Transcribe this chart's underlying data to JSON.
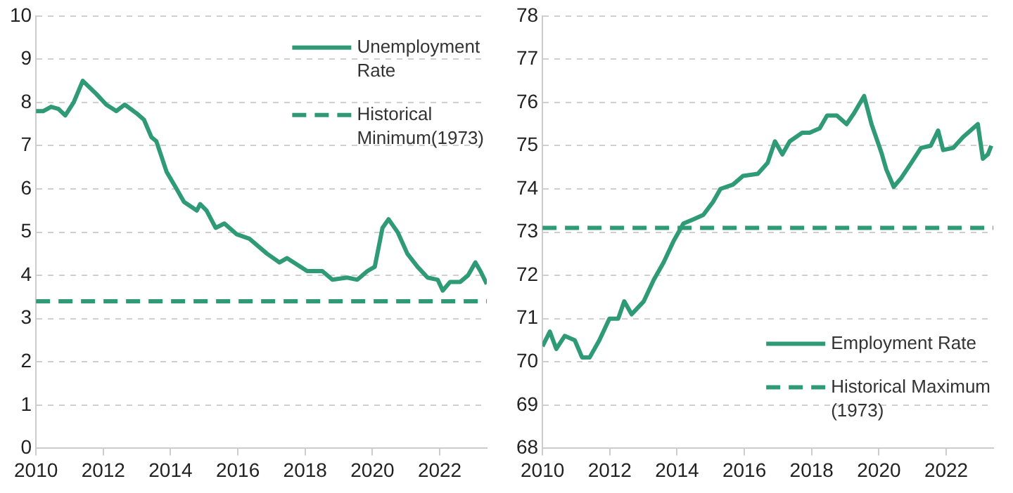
{
  "chart_data": [
    {
      "type": "line",
      "xlim": [
        2010,
        2023.4
      ],
      "xticks": [
        2010,
        2012,
        2014,
        2016,
        2018,
        2020,
        2022
      ],
      "ylim": [
        0,
        10
      ],
      "yticks": [
        0,
        1,
        2,
        3,
        4,
        5,
        6,
        7,
        8,
        9,
        10
      ],
      "grid": "y",
      "legend": "top right",
      "series": [
        {
          "name": "Unemployment Rate",
          "color": "#2e9a76",
          "line_style": "solid",
          "x": [
            2010.0,
            2010.22,
            2010.45,
            2010.67,
            2010.87,
            2011.12,
            2011.39,
            2011.79,
            2012.09,
            2012.39,
            2012.64,
            2012.99,
            2013.21,
            2013.43,
            2013.58,
            2013.88,
            2014.18,
            2014.4,
            2014.78,
            2014.88,
            2015.07,
            2015.34,
            2015.6,
            2015.97,
            2016.34,
            2016.87,
            2017.24,
            2017.46,
            2017.76,
            2018.06,
            2018.51,
            2018.81,
            2019.25,
            2019.55,
            2019.85,
            2020.07,
            2020.3,
            2020.48,
            2020.75,
            2021.04,
            2021.34,
            2021.64,
            2021.94,
            2022.09,
            2022.31,
            2022.61,
            2022.84,
            2023.06,
            2023.21,
            2023.4
          ],
          "values": [
            7.8,
            7.8,
            7.9,
            7.85,
            7.7,
            8.0,
            8.5,
            8.2,
            7.95,
            7.8,
            7.95,
            7.75,
            7.6,
            7.2,
            7.1,
            6.4,
            6.0,
            5.7,
            5.5,
            5.65,
            5.5,
            5.1,
            5.2,
            4.95,
            4.85,
            4.5,
            4.3,
            4.4,
            4.25,
            4.1,
            4.1,
            3.9,
            3.95,
            3.9,
            4.1,
            4.2,
            5.1,
            5.3,
            5.0,
            4.5,
            4.2,
            3.95,
            3.9,
            3.65,
            3.85,
            3.85,
            4.0,
            4.3,
            4.1,
            3.8
          ]
        },
        {
          "name": "Historical Minimum(1973)",
          "color": "#2e9a76",
          "line_style": "dashed",
          "x": [
            2010,
            2023.4
          ],
          "values": [
            3.4,
            3.4
          ]
        }
      ]
    },
    {
      "type": "line",
      "xlim": [
        2010,
        2023.4
      ],
      "xticks": [
        2010,
        2012,
        2014,
        2016,
        2018,
        2020,
        2022
      ],
      "ylim": [
        68,
        78
      ],
      "yticks": [
        68,
        69,
        70,
        71,
        72,
        73,
        74,
        75,
        76,
        77,
        78
      ],
      "grid": "y",
      "legend": "bottom right",
      "series": [
        {
          "name": "Employment Rate",
          "color": "#2e9a76",
          "line_style": "solid",
          "x": [
            2010.0,
            2010.22,
            2010.41,
            2010.66,
            2010.96,
            2011.18,
            2011.4,
            2011.69,
            2011.99,
            2012.25,
            2012.43,
            2012.65,
            2013.01,
            2013.31,
            2013.6,
            2013.9,
            2014.19,
            2014.49,
            2014.78,
            2015.07,
            2015.29,
            2015.66,
            2015.96,
            2016.4,
            2016.69,
            2016.91,
            2017.13,
            2017.35,
            2017.72,
            2017.94,
            2018.24,
            2018.46,
            2018.75,
            2019.04,
            2019.26,
            2019.56,
            2019.78,
            2020.07,
            2020.22,
            2020.44,
            2020.66,
            2020.96,
            2021.25,
            2021.54,
            2021.76,
            2021.91,
            2022.21,
            2022.5,
            2022.72,
            2022.94,
            2023.09,
            2023.24,
            2023.34
          ],
          "values": [
            70.36,
            70.7,
            70.3,
            70.6,
            70.5,
            70.1,
            70.1,
            70.5,
            71.0,
            71.0,
            71.4,
            71.1,
            71.4,
            71.9,
            72.3,
            72.8,
            73.2,
            73.3,
            73.4,
            73.7,
            74.0,
            74.1,
            74.3,
            74.35,
            74.6,
            75.1,
            74.8,
            75.1,
            75.3,
            75.3,
            75.4,
            75.7,
            75.7,
            75.5,
            75.75,
            76.15,
            75.5,
            74.85,
            74.45,
            74.05,
            74.25,
            74.6,
            74.95,
            75.0,
            75.35,
            74.9,
            74.95,
            75.2,
            75.35,
            75.5,
            74.7,
            74.8,
            75.0
          ]
        },
        {
          "name": "Historical Maximum (1973)",
          "color": "#2e9a76",
          "line_style": "dashed",
          "x": [
            2010,
            2023.4
          ],
          "values": [
            73.1,
            73.1
          ]
        }
      ]
    }
  ]
}
